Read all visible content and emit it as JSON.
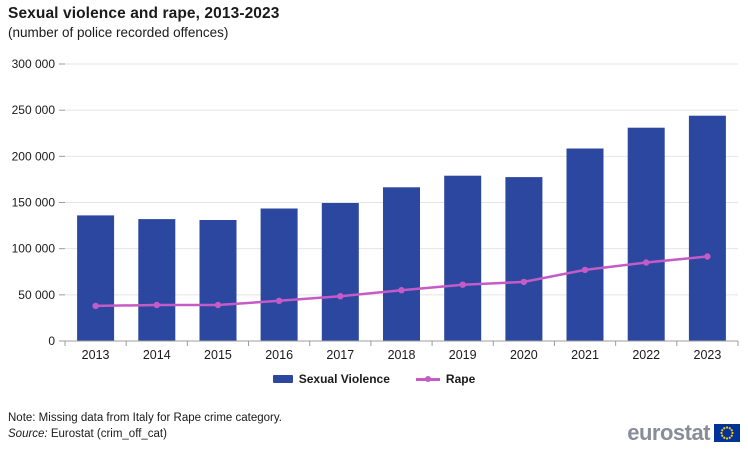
{
  "title": "Sexual violence and rape, 2013-2023",
  "subtitle": "(number of police recorded offences)",
  "chart_data": {
    "type": "bar",
    "categories": [
      "2013",
      "2014",
      "2015",
      "2016",
      "2017",
      "2018",
      "2019",
      "2020",
      "2021",
      "2022",
      "2023"
    ],
    "series": [
      {
        "name": "Sexual Violence",
        "type": "bar",
        "color": "#2B479F",
        "values": [
          136000,
          132000,
          131000,
          143500,
          149500,
          166500,
          179000,
          177500,
          208500,
          231000,
          244000
        ]
      },
      {
        "name": "Rape",
        "type": "line",
        "color": "#C55BC7",
        "values": [
          38000,
          39000,
          39000,
          43500,
          48500,
          55000,
          61000,
          64000,
          77000,
          85000,
          91500
        ]
      }
    ],
    "xlabel": "",
    "ylabel": "",
    "ylim": [
      0,
      300000
    ],
    "yticks": [
      {
        "value": 0,
        "label": "0"
      },
      {
        "value": 50000,
        "label": "50 000"
      },
      {
        "value": 100000,
        "label": "100 000"
      },
      {
        "value": 150000,
        "label": "150 000"
      },
      {
        "value": 200000,
        "label": "200 000"
      },
      {
        "value": 250000,
        "label": "250 000"
      },
      {
        "value": 300000,
        "label": "300 000"
      }
    ],
    "grid": "horizontal",
    "grid_color": "#E4E4E4",
    "axis_color": "#9C9C9C",
    "label_color": "#1a1a1a",
    "legend_position": "bottom"
  },
  "footer": {
    "note": "Note: Missing data from Italy for Rape crime category.",
    "source_label": "Source:",
    "source_text": "Eurostat (crim_off_cat)"
  },
  "logo": {
    "text": "eurostat",
    "text_color": "#8B8C99",
    "flag_color": "#003399",
    "star_color": "#FFCC00"
  }
}
